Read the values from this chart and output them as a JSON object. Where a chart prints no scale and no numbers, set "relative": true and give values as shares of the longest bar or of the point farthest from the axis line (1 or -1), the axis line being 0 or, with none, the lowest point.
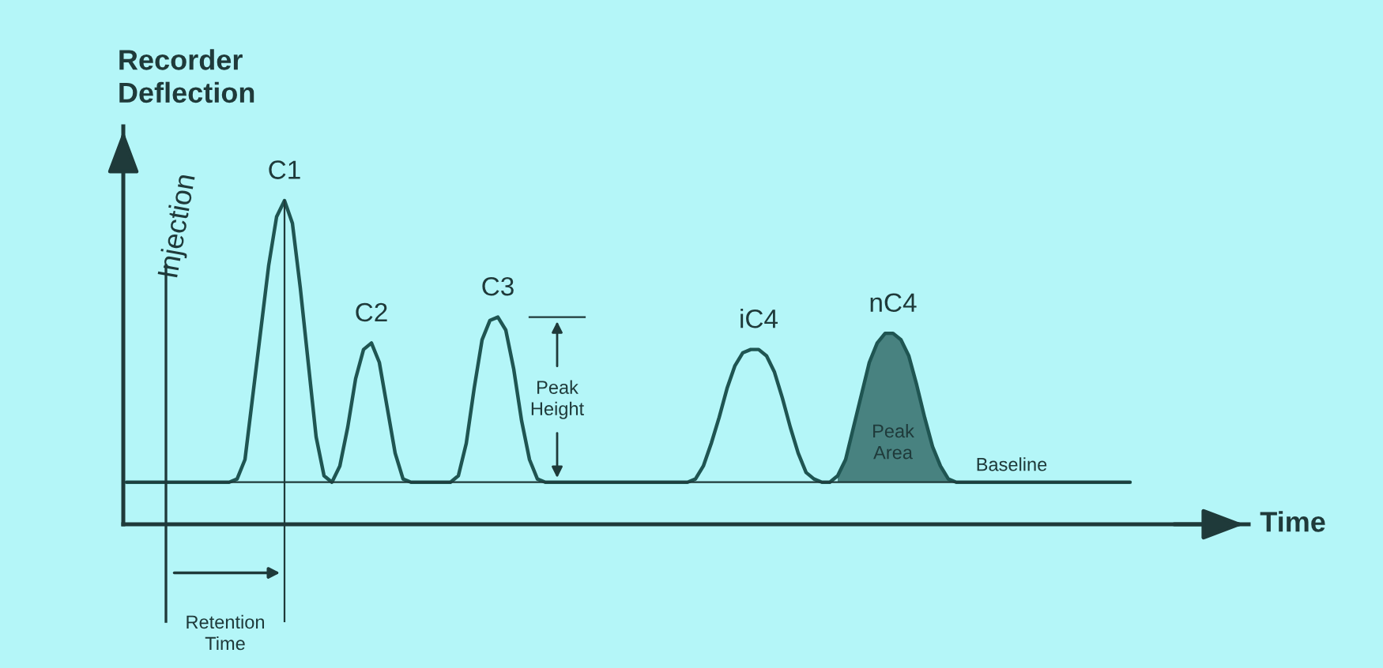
{
  "chart_data": {
    "type": "line",
    "relative": true,
    "xlabel": "Time",
    "ylabel": "Recorder\nDeflection",
    "categories": [
      null,
      null,
      null,
      null,
      null,
      null,
      null,
      null,
      null,
      null,
      null,
      null,
      null,
      null,
      null,
      null,
      null,
      null,
      null,
      null,
      null,
      null,
      null,
      null,
      null,
      null,
      null,
      null,
      null,
      null,
      null,
      null,
      null,
      null,
      null,
      null,
      null,
      null,
      null,
      null,
      null,
      null,
      null,
      null,
      null,
      null,
      null,
      null,
      null,
      null,
      null,
      null,
      null,
      null,
      null,
      null,
      null,
      null,
      null,
      null,
      null,
      null,
      null,
      null,
      null,
      null,
      null,
      null,
      null,
      null,
      null,
      null,
      null,
      null,
      null,
      null,
      null,
      null,
      null,
      null,
      null,
      null,
      null,
      null,
      null,
      null,
      null,
      null,
      null,
      null,
      null,
      null,
      null,
      null,
      null,
      null,
      null,
      null,
      null,
      null,
      null,
      null,
      null,
      null,
      null,
      null,
      null,
      null,
      null,
      null,
      null,
      null,
      null,
      null,
      null,
      null,
      null,
      null,
      null,
      null,
      null,
      null,
      null,
      null,
      null,
      null,
      null,
      null
    ],
    "series": [
      {
        "color": "#1f5552",
        "values": [
          0.13,
          0.13,
          0.13,
          0.13,
          0.13,
          0.13,
          0.13,
          0.13,
          0.13,
          0.13,
          0.13,
          0.13,
          0.13,
          0.13,
          0.14,
          0.2,
          0.4,
          0.6,
          0.8,
          0.95,
          1.0,
          0.93,
          0.73,
          0.5,
          0.27,
          0.15,
          0.13,
          0.18,
          0.3,
          0.45,
          0.54,
          0.56,
          0.5,
          0.36,
          0.22,
          0.14,
          0.13,
          0.13,
          0.13,
          0.13,
          0.13,
          0.13,
          0.15,
          0.25,
          0.42,
          0.57,
          0.63,
          0.64,
          0.6,
          0.48,
          0.32,
          0.2,
          0.14,
          0.13,
          0.13,
          0.13,
          0.13,
          0.13,
          0.13,
          0.13,
          0.13,
          0.13,
          0.13,
          0.13,
          0.13,
          0.13,
          0.13,
          0.13,
          0.13,
          0.13,
          0.13,
          0.13,
          0.14,
          0.18,
          0.25,
          0.33,
          0.42,
          0.49,
          0.53,
          0.54,
          0.54,
          0.52,
          0.47,
          0.39,
          0.3,
          0.22,
          0.16,
          0.14,
          0.13,
          0.13,
          0.15,
          0.2,
          0.3,
          0.4,
          0.5,
          0.56,
          0.59,
          0.59,
          0.57,
          0.52,
          0.43,
          0.33,
          0.24,
          0.18,
          0.14,
          0.13,
          0.13,
          0.13,
          0.13,
          0.13,
          0.13,
          0.13,
          0.13,
          0.13,
          0.13,
          0.13,
          0.13,
          0.13,
          0.13,
          0.13,
          0.13,
          0.13,
          0.13,
          0.13,
          0.13,
          0.13,
          0.13,
          0.13
        ],
        "lower": [
          null,
          null,
          null,
          null,
          null,
          null,
          null,
          null,
          null,
          null,
          null,
          null,
          null,
          null,
          null,
          null,
          null,
          null,
          null,
          null,
          null,
          null,
          null,
          null,
          null,
          null,
          null,
          null,
          null,
          null,
          null,
          null,
          null,
          null,
          null,
          null,
          null,
          null,
          null,
          null,
          null,
          null,
          null,
          null,
          null,
          null,
          null,
          null,
          null,
          null,
          null,
          null,
          null,
          null,
          null,
          null,
          null,
          null,
          null,
          null,
          null,
          null,
          null,
          null,
          null,
          null,
          null,
          null,
          null,
          null,
          null,
          null,
          null,
          null,
          null,
          null,
          null,
          null,
          null,
          null,
          null,
          null,
          null,
          null,
          null,
          null,
          null,
          null,
          null,
          null,
          0.13,
          0.13,
          0.13,
          0.13,
          0.13,
          0.13,
          0.13,
          0.13,
          0.13,
          0.13,
          0.13,
          0.13,
          0.13,
          0.13,
          0.13,
          0.13,
          null,
          null,
          null,
          null,
          null,
          null,
          null,
          null,
          null,
          null,
          null,
          null,
          null,
          null,
          null,
          null,
          null,
          null,
          null,
          null,
          null,
          null
        ],
        "upper": [
          null,
          null,
          null,
          null,
          null,
          null,
          null,
          null,
          null,
          null,
          null,
          null,
          null,
          null,
          null,
          null,
          null,
          null,
          null,
          null,
          null,
          null,
          null,
          null,
          null,
          null,
          null,
          null,
          null,
          null,
          null,
          null,
          null,
          null,
          null,
          null,
          null,
          null,
          null,
          null,
          null,
          null,
          null,
          null,
          null,
          null,
          null,
          null,
          null,
          null,
          null,
          null,
          null,
          null,
          null,
          null,
          null,
          null,
          null,
          null,
          null,
          null,
          null,
          null,
          null,
          null,
          null,
          null,
          null,
          null,
          null,
          null,
          null,
          null,
          null,
          null,
          null,
          null,
          null,
          null,
          null,
          null,
          null,
          null,
          null,
          null,
          null,
          null,
          null,
          null,
          0.15,
          0.2,
          0.3,
          0.4,
          0.5,
          0.56,
          0.59,
          0.59,
          0.57,
          0.52,
          0.43,
          0.33,
          0.24,
          0.18,
          0.14,
          0.13,
          null,
          null,
          null,
          null,
          null,
          null,
          null,
          null,
          null,
          null,
          null,
          null,
          null,
          null,
          null,
          null,
          null,
          null,
          null,
          null,
          null,
          null
        ]
      }
    ],
    "ref_lines": [
      {
        "axis": "y",
        "value": 0.13,
        "label": "Baseline",
        "color": "#1f3a3a"
      }
    ],
    "annotations": [
      "C1",
      "C2",
      "C3",
      "iC4",
      "nC4",
      "Injection",
      "Retention\nTime",
      "Peak\nHeight",
      "Peak\nArea"
    ]
  }
}
